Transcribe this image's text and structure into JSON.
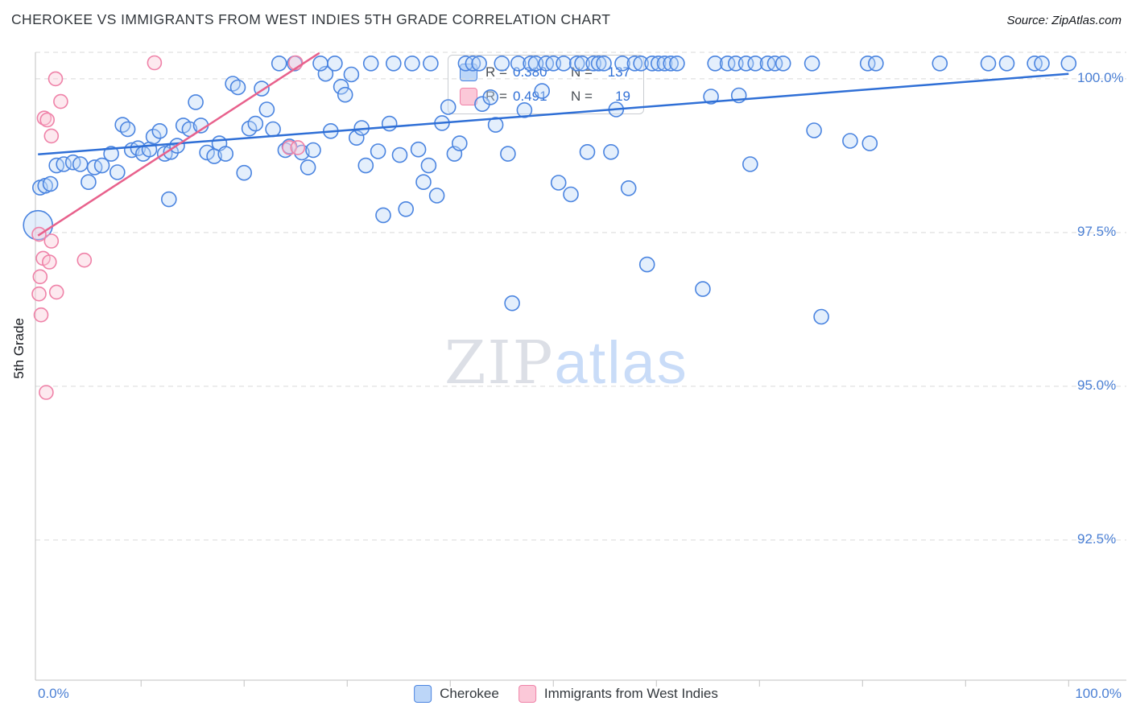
{
  "title": "CHEROKEE VS IMMIGRANTS FROM WEST INDIES 5TH GRADE CORRELATION CHART",
  "source": "Source: ZipAtlas.com",
  "y_axis_label": "5th Grade",
  "watermark": {
    "zip": "ZIP",
    "atlas": "atlas"
  },
  "legend_box": {
    "rows": [
      {
        "r_label": "R =",
        "r_value": "0.380",
        "n_label": "N =",
        "n_value": "137"
      },
      {
        "r_label": "R =",
        "r_value": "0.491",
        "n_label": "N =",
        "n_value": "19"
      }
    ]
  },
  "bottom_legend": {
    "items": [
      {
        "label": "Cherokee"
      },
      {
        "label": "Immigrants from West Indies"
      }
    ]
  },
  "chart_data": {
    "type": "scatter",
    "title": "CHEROKEE VS IMMIGRANTS FROM WEST INDIES 5TH GRADE CORRELATION CHART",
    "xlabel": "",
    "ylabel": "5th Grade",
    "xlim": [
      -0.25,
      105.6
    ],
    "ylim": [
      90.22,
      100.43
    ],
    "x_ticks": [
      10,
      20,
      30,
      40,
      50,
      60,
      70,
      80,
      90,
      100
    ],
    "x_tick_labels": [
      "0.0%",
      "100.0%"
    ],
    "y_gridlines": [
      100.0,
      97.5,
      95.0,
      92.5
    ],
    "y_tick_labels": [
      "100.0%",
      "97.5%",
      "95.0%",
      "92.5%"
    ],
    "grid": "dashed-horizontal",
    "legend_position": "bottom-center",
    "series": [
      {
        "name": "Cherokee",
        "r": 0.38,
        "n": 137,
        "point_color": "#bcd6f8",
        "stroke": "#4a84e0",
        "trend_color": "#2f6fd6",
        "point_radius": 9,
        "trend": {
          "x": [
            0,
            100
          ],
          "y": [
            98.77,
            100.08
          ]
        },
        "points": [
          [
            0.0,
            97.62,
            18
          ],
          [
            0.2,
            98.23
          ],
          [
            0.7,
            98.26
          ],
          [
            1.2,
            98.29
          ],
          [
            1.8,
            98.59
          ],
          [
            2.5,
            98.61
          ],
          [
            3.4,
            98.64
          ],
          [
            4.1,
            98.61
          ],
          [
            4.9,
            98.32
          ],
          [
            5.5,
            98.56
          ],
          [
            6.2,
            98.59
          ],
          [
            7.1,
            98.78
          ],
          [
            7.7,
            98.48
          ],
          [
            8.2,
            99.25
          ],
          [
            8.7,
            99.18
          ],
          [
            9.1,
            98.84
          ],
          [
            9.7,
            98.87
          ],
          [
            10.2,
            98.78
          ],
          [
            10.8,
            98.85
          ],
          [
            11.2,
            99.06
          ],
          [
            11.8,
            99.15
          ],
          [
            12.3,
            98.78
          ],
          [
            12.9,
            98.81
          ],
          [
            13.5,
            98.91
          ],
          [
            12.7,
            98.04
          ],
          [
            14.1,
            99.24
          ],
          [
            14.7,
            99.18
          ],
          [
            15.3,
            99.62
          ],
          [
            15.8,
            99.24
          ],
          [
            16.4,
            98.8
          ],
          [
            17.1,
            98.74
          ],
          [
            17.6,
            98.95
          ],
          [
            18.2,
            98.78
          ],
          [
            18.9,
            99.92
          ],
          [
            19.4,
            99.86
          ],
          [
            20.0,
            98.47
          ],
          [
            20.5,
            99.19
          ],
          [
            21.1,
            99.27
          ],
          [
            21.7,
            99.84
          ],
          [
            22.2,
            99.5
          ],
          [
            22.8,
            99.18
          ],
          [
            24.0,
            98.84
          ],
          [
            24.4,
            98.9
          ],
          [
            25.6,
            98.8
          ],
          [
            26.2,
            98.56
          ],
          [
            26.7,
            98.84
          ],
          [
            27.9,
            100.08
          ],
          [
            28.4,
            99.15
          ],
          [
            29.4,
            99.87
          ],
          [
            29.8,
            99.74
          ],
          [
            30.4,
            100.07
          ],
          [
            30.9,
            99.04
          ],
          [
            31.4,
            99.2
          ],
          [
            31.8,
            98.59
          ],
          [
            33.0,
            98.82
          ],
          [
            33.5,
            97.78
          ],
          [
            34.1,
            99.27
          ],
          [
            35.1,
            98.76
          ],
          [
            35.7,
            97.88
          ],
          [
            36.9,
            98.85
          ],
          [
            37.4,
            98.32
          ],
          [
            37.9,
            98.59
          ],
          [
            38.7,
            98.1
          ],
          [
            39.2,
            99.28
          ],
          [
            39.8,
            99.54
          ],
          [
            40.4,
            98.78
          ],
          [
            40.9,
            98.95
          ],
          [
            43.1,
            99.59
          ],
          [
            43.9,
            99.7
          ],
          [
            44.4,
            99.25
          ],
          [
            45.6,
            98.78
          ],
          [
            46.0,
            96.35
          ],
          [
            47.2,
            99.49
          ],
          [
            48.9,
            99.8
          ],
          [
            50.5,
            98.31
          ],
          [
            51.7,
            98.12
          ],
          [
            53.3,
            98.81
          ],
          [
            55.6,
            98.81
          ],
          [
            56.1,
            99.5
          ],
          [
            57.3,
            98.22
          ],
          [
            59.1,
            96.98
          ],
          [
            64.5,
            96.58
          ],
          [
            65.3,
            99.71
          ],
          [
            68.0,
            99.73
          ],
          [
            69.1,
            98.61
          ],
          [
            75.3,
            99.16
          ],
          [
            76.0,
            96.13
          ],
          [
            78.8,
            98.99
          ],
          [
            80.7,
            98.95
          ],
          [
            23.4,
            100.25
          ],
          [
            24.9,
            100.25
          ],
          [
            27.4,
            100.25
          ],
          [
            28.8,
            100.25
          ],
          [
            32.3,
            100.25
          ],
          [
            34.5,
            100.25
          ],
          [
            36.3,
            100.25
          ],
          [
            38.1,
            100.25
          ],
          [
            41.5,
            100.25
          ],
          [
            42.2,
            100.25
          ],
          [
            42.8,
            100.25
          ],
          [
            45.0,
            100.25
          ],
          [
            46.6,
            100.25
          ],
          [
            47.8,
            100.25
          ],
          [
            48.3,
            100.25
          ],
          [
            49.3,
            100.25
          ],
          [
            50.0,
            100.25
          ],
          [
            51.0,
            100.25
          ],
          [
            52.3,
            100.25
          ],
          [
            52.8,
            100.25
          ],
          [
            53.9,
            100.25
          ],
          [
            54.4,
            100.25
          ],
          [
            54.9,
            100.25
          ],
          [
            56.7,
            100.25
          ],
          [
            57.9,
            100.25
          ],
          [
            58.5,
            100.25
          ],
          [
            59.6,
            100.25
          ],
          [
            60.2,
            100.25
          ],
          [
            60.8,
            100.25
          ],
          [
            61.4,
            100.25
          ],
          [
            62.0,
            100.25
          ],
          [
            65.7,
            100.25
          ],
          [
            66.9,
            100.25
          ],
          [
            67.7,
            100.25
          ],
          [
            68.7,
            100.25
          ],
          [
            69.6,
            100.25
          ],
          [
            70.8,
            100.25
          ],
          [
            71.5,
            100.25
          ],
          [
            72.3,
            100.25
          ],
          [
            75.1,
            100.25
          ],
          [
            80.5,
            100.25
          ],
          [
            81.3,
            100.25
          ],
          [
            87.5,
            100.25
          ],
          [
            92.2,
            100.25
          ],
          [
            94.0,
            100.25
          ],
          [
            96.7,
            100.25
          ],
          [
            97.4,
            100.25
          ],
          [
            100.0,
            100.25
          ]
        ]
      },
      {
        "name": "Immigrants from West Indies",
        "r": 0.491,
        "n": 19,
        "point_color": "#fbc8d8",
        "stroke": "#ef82a8",
        "trend_color": "#e8618c",
        "point_radius": 8.5,
        "trend": {
          "x": [
            0,
            27.3
          ],
          "y": [
            97.45,
            100.42
          ]
        },
        "points": [
          [
            1.7,
            100.0
          ],
          [
            2.2,
            99.63
          ],
          [
            0.6,
            99.36
          ],
          [
            0.9,
            99.33
          ],
          [
            1.3,
            99.07
          ],
          [
            11.3,
            100.26
          ],
          [
            25.0,
            100.26
          ],
          [
            24.4,
            98.88
          ],
          [
            25.2,
            98.88
          ],
          [
            0.1,
            97.47
          ],
          [
            1.3,
            97.36
          ],
          [
            0.5,
            97.08
          ],
          [
            1.1,
            97.02
          ],
          [
            4.5,
            97.05
          ],
          [
            0.2,
            96.78
          ],
          [
            0.1,
            96.5
          ],
          [
            1.8,
            96.53
          ],
          [
            0.3,
            96.16
          ],
          [
            0.8,
            94.9
          ]
        ]
      }
    ]
  }
}
